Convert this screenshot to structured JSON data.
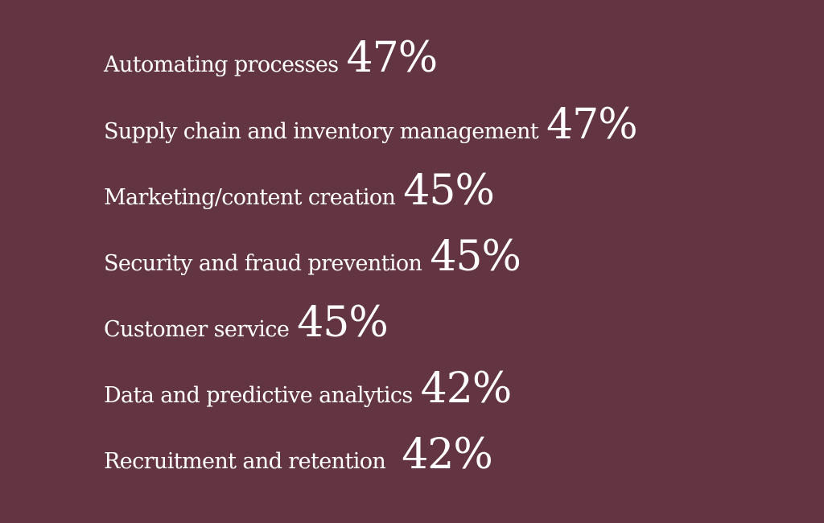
{
  "background_color": "#633442",
  "text_color": "#ffffff",
  "stats": [
    {
      "label": "Automating processes",
      "value": "47%"
    },
    {
      "label": "Supply chain and inventory management",
      "value": "47%"
    },
    {
      "label": "Marketing/content creation",
      "value": "45%"
    },
    {
      "label": "Security and fraud prevention",
      "value": "45%"
    },
    {
      "label": "Customer service",
      "value": "45%"
    },
    {
      "label": "Data and predictive analytics",
      "value": "42%"
    },
    {
      "label": "Recruitment and retention",
      "value": "42%"
    }
  ]
}
